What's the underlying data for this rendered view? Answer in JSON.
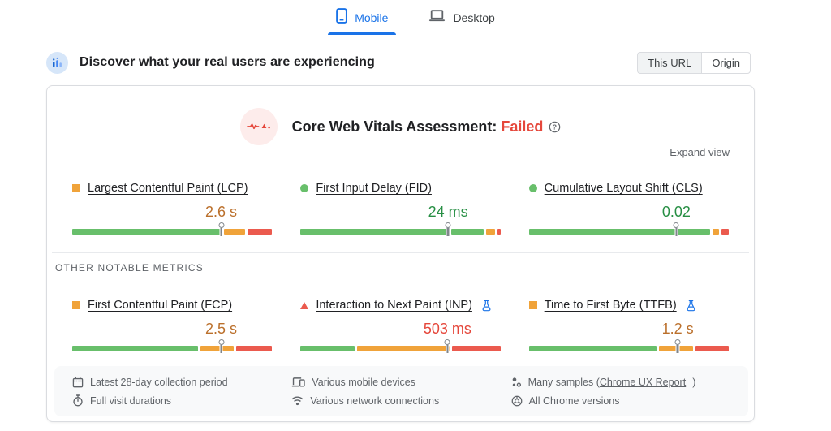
{
  "colors": {
    "good": "#68bf6b",
    "ni": "#f0a33a",
    "poor": "#eb5a4e",
    "accent_blue": "#1a73e8",
    "text_green": "#278f44",
    "text_orange": "#bb702c",
    "text_red": "#e5473b"
  },
  "tabs": {
    "mobile": "Mobile",
    "desktop": "Desktop"
  },
  "field_header": {
    "title": "Discover what your real users are experiencing",
    "this_url": "This URL",
    "origin": "Origin"
  },
  "assessment": {
    "label": "Core Web Vitals Assessment:",
    "status": "Failed"
  },
  "expand_view": "Expand view",
  "section_label": "OTHER NOTABLE METRICS",
  "core_metrics": [
    {
      "label": "Largest Contentful Paint (LCP)",
      "value": "2.6 s",
      "value_color": "orange",
      "bullet": {
        "shape": "square",
        "color": "ni"
      },
      "experimental": false,
      "pin": 74.5,
      "segments": [
        [
          "good",
          73.5
        ],
        [
          "ni",
          10.5
        ],
        [
          "poor",
          12
        ]
      ]
    },
    {
      "label": "First Input Delay (FID)",
      "value": "24 ms",
      "value_color": "green",
      "bullet": {
        "shape": "circle",
        "color": "good"
      },
      "experimental": false,
      "pin": 73.8,
      "segments": [
        [
          "good",
          73
        ],
        [
          "good",
          16
        ],
        [
          "ni",
          4.5
        ],
        [
          "poor",
          1.5
        ]
      ]
    },
    {
      "label": "Cumulative Layout Shift (CLS)",
      "value": "0.02",
      "value_color": "green",
      "bullet": {
        "shape": "circle",
        "color": "good"
      },
      "experimental": false,
      "pin": 73.8,
      "segments": [
        [
          "good",
          73
        ],
        [
          "good",
          16
        ],
        [
          "ni",
          3.5
        ],
        [
          "poor",
          3.5
        ]
      ]
    }
  ],
  "other_metrics": [
    {
      "label": "First Contentful Paint (FCP)",
      "value": "2.5 s",
      "value_color": "orange",
      "bullet": {
        "shape": "square",
        "color": "ni"
      },
      "experimental": false,
      "pin": 74.5,
      "segments": [
        [
          "good",
          62.5
        ],
        [
          "ni",
          10
        ],
        [
          "ni",
          5.5
        ],
        [
          "poor",
          18
        ]
      ]
    },
    {
      "label": "Interaction to Next Paint (INP)",
      "value": "503 ms",
      "value_color": "red",
      "bullet": {
        "shape": "triangle",
        "color": "poor"
      },
      "experimental": true,
      "pin": 73.5,
      "segments": [
        [
          "good",
          26.5
        ],
        [
          "ni",
          45.5
        ],
        [
          "poor",
          24
        ]
      ]
    },
    {
      "label": "Time to First Byte (TTFB)",
      "value": "1.2 s",
      "value_color": "orange",
      "bullet": {
        "shape": "square",
        "color": "ni"
      },
      "experimental": true,
      "pin": 74.5,
      "segments": [
        [
          "good",
          63.5
        ],
        [
          "ni",
          8.5
        ],
        [
          "ni",
          7
        ],
        [
          "poor",
          16.5
        ]
      ]
    }
  ],
  "footer": {
    "rows": [
      [
        {
          "icon": "calendar-icon",
          "text": "Latest 28-day collection period",
          "link": "",
          "after": ""
        },
        {
          "icon": "devices-icon",
          "text": "Various mobile devices",
          "link": "",
          "after": ""
        },
        {
          "icon": "samples-icon",
          "text": "Many samples (",
          "link": "Chrome UX Report",
          "after": ")"
        }
      ],
      [
        {
          "icon": "stopwatch-icon",
          "text": "Full visit durations",
          "link": "",
          "after": ""
        },
        {
          "icon": "network-icon",
          "text": "Various network connections",
          "link": "",
          "after": ""
        },
        {
          "icon": "chrome-icon",
          "text": "All Chrome versions",
          "link": "",
          "after": ""
        }
      ]
    ]
  }
}
